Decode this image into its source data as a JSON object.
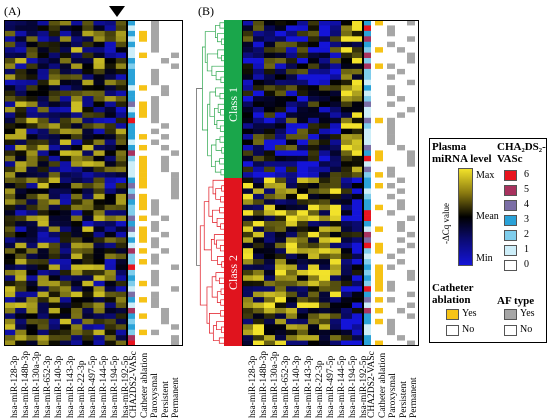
{
  "panels": {
    "a_label": "(A)",
    "b_label": "(B)"
  },
  "rows_a": 60,
  "rows_b": 60,
  "mirnas": [
    "hsa-miR-128-3p",
    "hsa-miR-148b-3p",
    "hsa-miR-130a-3p",
    "hsa-miR-652-3p",
    "hsa-miR-140-3p",
    "hsa-miR-143-3p",
    "hsa-miR-22-3p",
    "hsa-miR-497-5p",
    "hsa-miR-144-5p",
    "hsa-miR-194-5p",
    "hsa-miR-192-5p"
  ],
  "annotation_labels": [
    "CHA2DS2-VASc",
    "Catheter ablation",
    "Paroxysmal",
    "Persistent",
    "Permanent"
  ],
  "classes": {
    "class1": "Class 1",
    "class2": "Class 2",
    "class1_color": "#1aa64b",
    "class2_color": "#e0141e"
  },
  "legend_plasma": {
    "title": "Plasma miRNA level",
    "axis": "-ΔCq value",
    "max": "Max",
    "mean": "Mean",
    "min": "Min"
  },
  "legend_cha": {
    "title": "CHA₂DS₂-VASc",
    "levels": [
      {
        "value": "6",
        "color": "#e8141e"
      },
      {
        "value": "5",
        "color": "#a8325e"
      },
      {
        "value": "4",
        "color": "#7b6ea6"
      },
      {
        "value": "3",
        "color": "#2aa2d8"
      },
      {
        "value": "2",
        "color": "#7fcdec"
      },
      {
        "value": "1",
        "color": "#cdeef9"
      },
      {
        "value": "0",
        "color": "#ffffff"
      }
    ]
  },
  "legend_catheter": {
    "title": "Catheter ablation",
    "yes": "Yes",
    "no": "No",
    "yes_color": "#f6c316"
  },
  "legend_af": {
    "title": "AF type",
    "yes": "Yes",
    "no": "No",
    "yes_color": "#a6a6a6"
  },
  "colors": {
    "max": "#f2e22a",
    "mean": "#000000",
    "min": "#1414d8",
    "dendro_green": "#2aa64b",
    "dendro_red": "#e0141e"
  }
}
